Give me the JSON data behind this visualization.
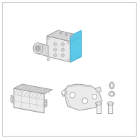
{
  "bg_color": "#ffffff",
  "border_color": "#cccccc",
  "highlight_color": "#5bc8e8",
  "highlight_stroke": "#3aaccf",
  "outline_color": "#999999",
  "light_gray": "#e8e8e8",
  "mid_gray": "#d4d4d4",
  "dark_gray": "#b8b8b8",
  "line_color": "#bbbbbb",
  "figsize": [
    2.0,
    2.0
  ],
  "dpi": 100
}
